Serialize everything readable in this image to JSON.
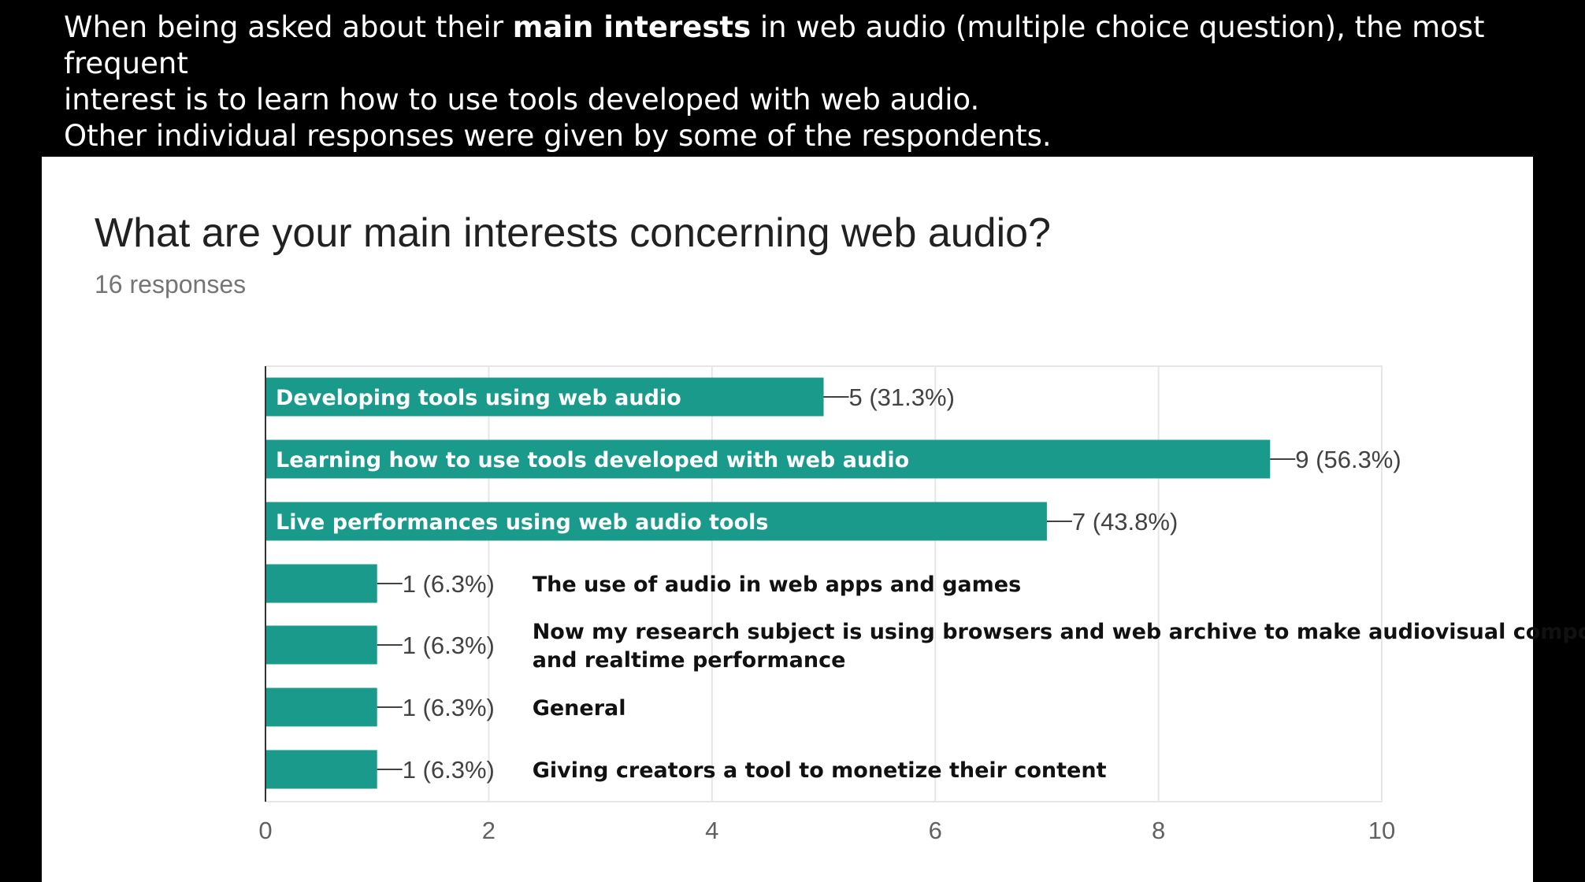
{
  "intro": {
    "line1_before": "When being asked about their ",
    "line1_bold": "main interests",
    "line1_after": " in web audio (multiple choice question), the most frequent",
    "line2": "interest is to learn how to use tools developed with web audio.",
    "line3": "Other individual responses were given by some of the respondents."
  },
  "chart_data": {
    "type": "bar",
    "orientation": "horizontal",
    "title": "What are your main interests concerning web audio?",
    "subtitle": "16 responses",
    "categories": [
      "Developing tools using web audio",
      "Learning how to use tools developed with web audio",
      "Live performances using web audio tools",
      "The use of audio in web apps and games",
      [
        "Now my research subject is using browsers and web archive to make audiovisual composition",
        "and realtime performance"
      ],
      "General",
      "Giving creators a tool to monetize their content"
    ],
    "values": [
      5,
      9,
      7,
      1,
      1,
      1,
      1
    ],
    "value_labels": [
      "5 (31.3%)",
      "9 (56.3%)",
      "7 (43.8%)",
      "1 (6.3%)",
      "1 (6.3%)",
      "1 (6.3%)",
      "1 (6.3%)"
    ],
    "xlim": [
      0,
      10
    ],
    "xticks": [
      0,
      2,
      4,
      6,
      8,
      10
    ],
    "grid": true,
    "bar_color": "#199a8b"
  }
}
